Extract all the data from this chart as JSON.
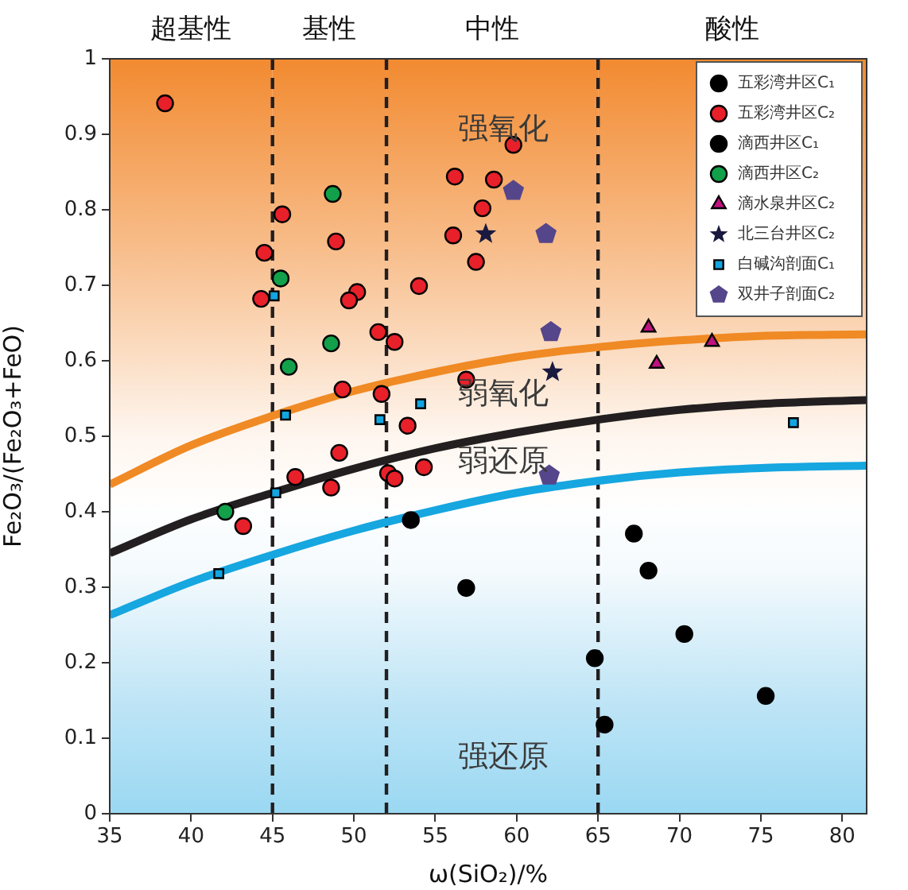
{
  "chart_data": {
    "type": "scatter",
    "xlabel": "ω(SiO₂)/%",
    "ylabel": "Fe₂O₃/(Fe₂O₃+FeO)",
    "xlim": [
      35,
      81.5
    ],
    "xticks": [
      35,
      40,
      45,
      50,
      55,
      60,
      65,
      70,
      75,
      80
    ],
    "ylim": [
      0,
      1
    ],
    "yticks": [
      0,
      0.1,
      0.2,
      0.3,
      0.4,
      0.5,
      0.6,
      0.7,
      0.8,
      0.9,
      1
    ],
    "grid": false,
    "legend": "top right",
    "series": [
      {
        "name": "五彩湾井区C₁",
        "color": "#000000",
        "marker": "circle",
        "x": [
          53.5,
          56.9
        ],
        "values": [
          0.389,
          0.299
        ]
      },
      {
        "name": "五彩湾井区C₂",
        "color": "#e8202a",
        "marker": "circle",
        "x": [
          38.4,
          45.6,
          44.5,
          48.9,
          44.3,
          50.2,
          49.7,
          54.0,
          51.5,
          52.5,
          49.3,
          51.7,
          56.9,
          53.3,
          56.2,
          58.6,
          57.9,
          56.1,
          57.5,
          59.8,
          49.1,
          46.4,
          48.6,
          52.1,
          52.5,
          54.3,
          43.2
        ],
        "values": [
          0.941,
          0.794,
          0.743,
          0.758,
          0.682,
          0.691,
          0.68,
          0.699,
          0.638,
          0.625,
          0.562,
          0.556,
          0.575,
          0.514,
          0.844,
          0.84,
          0.802,
          0.766,
          0.731,
          0.886,
          0.478,
          0.446,
          0.432,
          0.451,
          0.444,
          0.459,
          0.381
        ]
      },
      {
        "name": "滴西井区C₁",
        "color": "#000000",
        "marker": "circle",
        "x": [
          67.2,
          68.1,
          70.3,
          64.8,
          75.3,
          65.4
        ],
        "values": [
          0.371,
          0.322,
          0.238,
          0.206,
          0.156,
          0.118
        ]
      },
      {
        "name": "滴西井区C₂",
        "color": "#12a04a",
        "marker": "circle",
        "x": [
          48.7,
          45.5,
          48.6,
          46.0,
          42.1
        ],
        "values": [
          0.821,
          0.709,
          0.623,
          0.592,
          0.4
        ]
      },
      {
        "name": "滴水泉井区C₂",
        "color": "#c0127f",
        "marker": "triangle",
        "x": [
          68.1,
          72.0,
          68.6
        ],
        "values": [
          0.644,
          0.625,
          0.596
        ]
      },
      {
        "name": "北三台井区C₂",
        "color": "#1a1a40",
        "marker": "star",
        "x": [
          58.1,
          62.2
        ],
        "values": [
          0.768,
          0.585
        ]
      },
      {
        "name": "白碱沟剖面C₁",
        "color": "#12a5e0",
        "marker": "square",
        "x": [
          45.1,
          45.8,
          51.6,
          54.1,
          45.2,
          41.7,
          77.0
        ],
        "values": [
          0.686,
          0.528,
          0.522,
          0.543,
          0.425,
          0.318,
          0.518
        ]
      },
      {
        "name": "双井子剖面C₂",
        "color": "#55458a",
        "x": [
          59.8,
          61.8,
          62.1,
          62.0
        ],
        "values": [
          0.825,
          0.768,
          0.638,
          0.448
        ]
      },
      {
        "type": "line",
        "color": "#f08a24",
        "marker": "none",
        "x": [
          35,
          40,
          45,
          50,
          55,
          60,
          65,
          70,
          75,
          81.5
        ],
        "values": [
          0.436,
          0.488,
          0.527,
          0.56,
          0.585,
          0.605,
          0.618,
          0.627,
          0.633,
          0.635
        ]
      },
      {
        "type": "line",
        "color": "#231f20",
        "marker": "none",
        "x": [
          35,
          40,
          45,
          50,
          55,
          60,
          65,
          70,
          75,
          81.5
        ],
        "values": [
          0.345,
          0.39,
          0.425,
          0.457,
          0.484,
          0.505,
          0.522,
          0.535,
          0.543,
          0.548
        ]
      },
      {
        "type": "line",
        "color": "#16a6e0",
        "marker": "none",
        "x": [
          35,
          40,
          45,
          50,
          55,
          60,
          65,
          70,
          75,
          81.5
        ],
        "values": [
          0.263,
          0.307,
          0.343,
          0.375,
          0.402,
          0.425,
          0.441,
          0.452,
          0.458,
          0.461
        ]
      }
    ],
    "ref_lines": [
      {
        "axis": "x",
        "value": 45,
        "line_style": "dashed",
        "color": "#231f20"
      },
      {
        "axis": "x",
        "value": 52,
        "line_style": "dashed",
        "color": "#231f20"
      },
      {
        "axis": "x",
        "value": 65,
        "line_style": "dashed",
        "color": "#231f20"
      }
    ],
    "bands": [
      {
        "axis": "x",
        "from": 35,
        "to": 45,
        "label": "超基性",
        "color": "#f28a30"
      },
      {
        "axis": "x",
        "from": 45,
        "to": 52,
        "label": "基性",
        "color": "#f28a30"
      },
      {
        "axis": "x",
        "from": 52,
        "to": 65,
        "label": "中性",
        "color": "#f28a30"
      },
      {
        "axis": "x",
        "from": 65,
        "to": 81.5,
        "label": "酸性",
        "color": "#f28a30"
      }
    ],
    "annotations": [
      "强氧化",
      "弱氧化",
      "弱还原",
      "强还原"
    ]
  }
}
